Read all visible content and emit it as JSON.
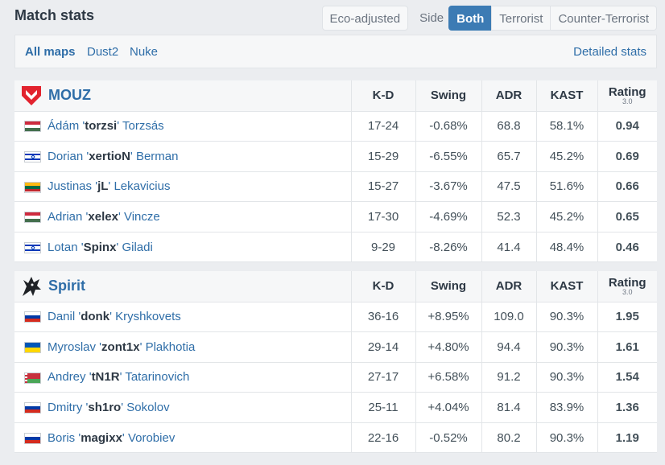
{
  "header": {
    "title": "Match stats",
    "eco_label": "Eco-adjusted",
    "side_label": "Side",
    "side_options": [
      "Both",
      "Terrorist",
      "Counter-Terrorist"
    ],
    "side_selected": "Both"
  },
  "maps": {
    "tabs": [
      "All maps",
      "Dust2",
      "Nuke"
    ],
    "active": "All maps",
    "detailed_label": "Detailed stats"
  },
  "columns": {
    "kd": "K-D",
    "swing": "Swing",
    "adr": "ADR",
    "kast": "KAST",
    "rating": "Rating",
    "rating_version": "3.0"
  },
  "teams": [
    {
      "name": "MOUZ",
      "logo": "mouz-logo",
      "players": [
        {
          "flag": "hungary",
          "first": "Ádám",
          "nick": "torzsi",
          "last": "Torzsás",
          "kd": "17-24",
          "swing": "-0.68%",
          "adr": "68.8",
          "kast": "58.1%",
          "rating": "0.94"
        },
        {
          "flag": "israel",
          "first": "Dorian",
          "nick": "xertioN",
          "last": "Berman",
          "kd": "15-29",
          "swing": "-6.55%",
          "adr": "65.7",
          "kast": "45.2%",
          "rating": "0.69"
        },
        {
          "flag": "lithuania",
          "first": "Justinas",
          "nick": "jL",
          "last": "Lekavicius",
          "kd": "15-27",
          "swing": "-3.67%",
          "adr": "47.5",
          "kast": "51.6%",
          "rating": "0.66"
        },
        {
          "flag": "hungary",
          "first": "Adrian",
          "nick": "xelex",
          "last": "Vincze",
          "kd": "17-30",
          "swing": "-4.69%",
          "adr": "52.3",
          "kast": "45.2%",
          "rating": "0.65"
        },
        {
          "flag": "israel",
          "first": "Lotan",
          "nick": "Spinx",
          "last": "Giladi",
          "kd": "9-29",
          "swing": "-8.26%",
          "adr": "41.4",
          "kast": "48.4%",
          "rating": "0.46"
        }
      ]
    },
    {
      "name": "Spirit",
      "logo": "spirit-logo",
      "players": [
        {
          "flag": "russia",
          "first": "Danil",
          "nick": "donk",
          "last": "Kryshkovets",
          "kd": "36-16",
          "swing": "+8.95%",
          "adr": "109.0",
          "kast": "90.3%",
          "rating": "1.95"
        },
        {
          "flag": "ukraine",
          "first": "Myroslav",
          "nick": "zont1x",
          "last": "Plakhotia",
          "kd": "29-14",
          "swing": "+4.80%",
          "adr": "94.4",
          "kast": "90.3%",
          "rating": "1.61"
        },
        {
          "flag": "belarus",
          "first": "Andrey",
          "nick": "tN1R",
          "last": "Tatarinovich",
          "kd": "27-17",
          "swing": "+6.58%",
          "adr": "91.2",
          "kast": "90.3%",
          "rating": "1.54"
        },
        {
          "flag": "russia",
          "first": "Dmitry",
          "nick": "sh1ro",
          "last": "Sokolov",
          "kd": "25-11",
          "swing": "+4.04%",
          "adr": "81.4",
          "kast": "83.9%",
          "rating": "1.36"
        },
        {
          "flag": "russia",
          "first": "Boris",
          "nick": "magixx",
          "last": "Vorobiev",
          "kd": "22-16",
          "swing": "-0.52%",
          "adr": "80.2",
          "kast": "90.3%",
          "rating": "1.19"
        }
      ]
    }
  ],
  "colors": {
    "accent": "#3c7bb4",
    "link": "#2f6ea8",
    "negative": "#d0363a",
    "positive": "#2aa22a"
  }
}
